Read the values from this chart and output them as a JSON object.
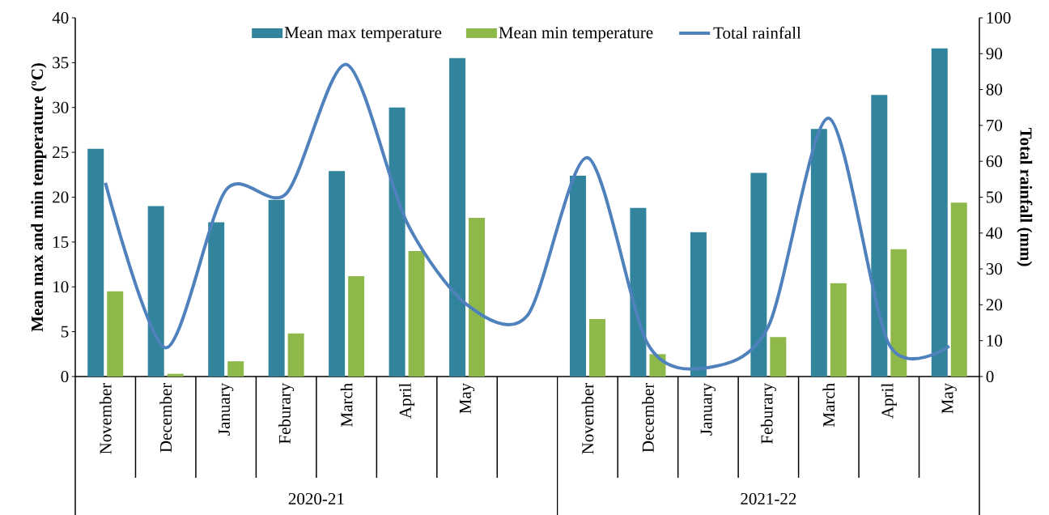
{
  "chart_data": {
    "type": "bar",
    "ylabel": "Mean max and min temperature (ºC)",
    "y2label": "Total rainfall (mm)",
    "categories": [
      "November",
      "December",
      "January",
      "Feburary",
      "March",
      "April",
      "May",
      null,
      "November",
      "December",
      "January",
      "Feburary",
      "March",
      "April",
      "May"
    ],
    "series": [
      {
        "name": "Mean max temperature",
        "color": "#31849b",
        "values": [
          25.4,
          19.0,
          17.2,
          19.7,
          22.9,
          30.0,
          35.5,
          null,
          22.4,
          18.8,
          16.1,
          22.7,
          27.6,
          31.4,
          36.6
        ]
      },
      {
        "name": "Mean min temperature",
        "color": "#8fb84a",
        "values": [
          9.5,
          0.3,
          1.7,
          4.8,
          11.2,
          14.0,
          17.7,
          null,
          6.4,
          2.5,
          0,
          4.4,
          10.4,
          14.2,
          19.4
        ]
      },
      {
        "name": "Total rainfall",
        "type": "line",
        "axis": "y2",
        "color": "#4f81bd",
        "values": [
          54,
          8,
          52,
          51,
          87,
          43,
          20,
          17,
          61,
          9,
          2.5,
          14,
          72,
          9,
          8.5
        ]
      }
    ],
    "ylim": [
      0,
      40
    ],
    "yticks": [
      0,
      5,
      10,
      15,
      20,
      25,
      30,
      35,
      40
    ],
    "y2lim": [
      0,
      100
    ],
    "y2ticks": [
      0,
      10,
      20,
      30,
      40,
      50,
      60,
      70,
      80,
      90,
      100
    ],
    "legend": "top",
    "annotations": [
      "2020-21",
      "2021-22"
    ]
  }
}
